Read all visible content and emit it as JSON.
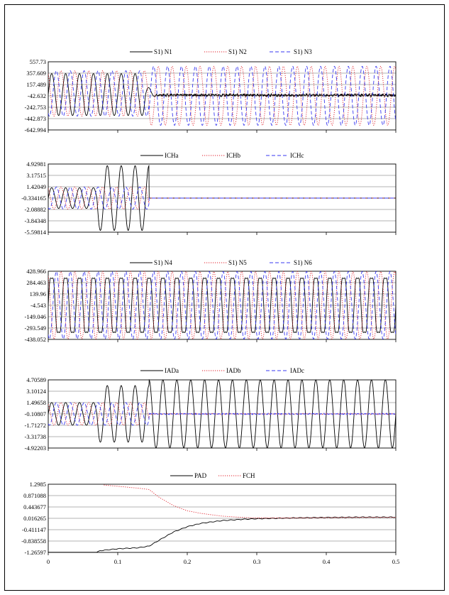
{
  "chart_data": [
    {
      "type": "line",
      "id": "p1",
      "y_ticks": [
        "557.73",
        "357.609",
        "157.489",
        "-42.632",
        "-242.753",
        "-442.873",
        "-642.994"
      ],
      "ylim": [
        -642.994,
        557.73
      ],
      "xlim": [
        0,
        0.5
      ],
      "series": [
        {
          "name": "S1) N1",
          "color": "#000000",
          "dash": "solid",
          "segments": [
            {
              "t0": 0,
              "t1": 0.14,
              "amp": 370,
              "offset": -20
            },
            {
              "t0": 0.14,
              "t1": 0.155,
              "amp": 150,
              "offset": -20,
              "decay": true
            },
            {
              "t0": 0.155,
              "t1": 0.5,
              "amp": 18,
              "offset": -30,
              "noise": true
            }
          ]
        },
        {
          "name": "S1) N2",
          "color": "#e0202a",
          "dash": "dot",
          "segments": [
            {
              "t0": 0,
              "t1": 0.145,
              "amp": 400,
              "offset": 0,
              "phase": 2.094
            },
            {
              "t0": 0.145,
              "t1": 0.5,
              "amp": 520,
              "offset": -42,
              "phase": 2.094
            }
          ]
        },
        {
          "name": "S1) N3",
          "color": "#3a3af0",
          "dash": "dash",
          "segments": [
            {
              "t0": 0,
              "t1": 0.145,
              "amp": 400,
              "offset": 0,
              "phase": 4.189
            },
            {
              "t0": 0.145,
              "t1": 0.5,
              "amp": 520,
              "offset": -42,
              "phase": 4.189
            }
          ]
        }
      ]
    },
    {
      "type": "line",
      "id": "p2",
      "y_ticks": [
        "4.92981",
        "3.17515",
        "1.42049",
        "-0.334165",
        "-2.08882",
        "-3.84348",
        "-5.59814"
      ],
      "ylim": [
        -5.59814,
        4.92981
      ],
      "xlim": [
        0,
        0.5
      ],
      "series": [
        {
          "name": "ICHa",
          "color": "#000000",
          "dash": "solid",
          "segments": [
            {
              "t0": 0,
              "t1": 0.07,
              "amp": 1.6,
              "offset": -0.33
            },
            {
              "t0": 0.07,
              "t1": 0.145,
              "amp": 5.0,
              "offset": -0.33
            },
            {
              "t0": 0.145,
              "t1": 0.5,
              "amp": 0,
              "offset": -0.334
            }
          ]
        },
        {
          "name": "ICHb",
          "color": "#e0202a",
          "dash": "dot",
          "segments": [
            {
              "t0": 0,
              "t1": 0.145,
              "amp": 1.7,
              "offset": -0.33,
              "phase": 2.094
            },
            {
              "t0": 0.145,
              "t1": 0.5,
              "amp": 0,
              "offset": -0.334
            }
          ]
        },
        {
          "name": "ICHc",
          "color": "#3a3af0",
          "dash": "dash",
          "segments": [
            {
              "t0": 0,
              "t1": 0.145,
              "amp": 1.7,
              "offset": -0.33,
              "phase": 4.189
            },
            {
              "t0": 0.145,
              "t1": 0.5,
              "amp": 0,
              "offset": -0.334
            }
          ]
        }
      ]
    },
    {
      "type": "line",
      "id": "p3",
      "y_ticks": [
        "428.966",
        "284.463",
        "139.96",
        "-4.543",
        "-149.046",
        "-293.549",
        "-438.052"
      ],
      "ylim": [
        -438.052,
        428.966
      ],
      "xlim": [
        0,
        0.5
      ],
      "series": [
        {
          "name": "S1) N4",
          "color": "#000000",
          "dash": "solid",
          "segments": [
            {
              "t0": 0,
              "t1": 0.5,
              "amp": 400,
              "offset": -4,
              "harm": true
            }
          ]
        },
        {
          "name": "S1) N5",
          "color": "#e0202a",
          "dash": "dot",
          "segments": [
            {
              "t0": 0,
              "t1": 0.5,
              "amp": 430,
              "offset": -4,
              "phase": 2.094
            }
          ]
        },
        {
          "name": "S1) N6",
          "color": "#3a3af0",
          "dash": "dash",
          "segments": [
            {
              "t0": 0,
              "t1": 0.5,
              "amp": 430,
              "offset": -4,
              "phase": 4.189
            }
          ]
        }
      ]
    },
    {
      "type": "line",
      "id": "p4",
      "y_ticks": [
        "4.70589",
        "3.10124",
        "1.49658",
        "-0.10807",
        "-1.71272",
        "-3.31738",
        "-4.92203"
      ],
      "ylim": [
        -4.92203,
        4.70589
      ],
      "xlim": [
        0,
        0.5
      ],
      "series": [
        {
          "name": "IADa",
          "color": "#000000",
          "dash": "solid",
          "segments": [
            {
              "t0": 0,
              "t1": 0.07,
              "amp": 1.6,
              "offset": -0.1
            },
            {
              "t0": 0.07,
              "t1": 0.145,
              "amp": 4.0,
              "offset": -0.1
            },
            {
              "t0": 0.145,
              "t1": 0.5,
              "amp": 4.8,
              "offset": -0.1
            }
          ]
        },
        {
          "name": "IADb",
          "color": "#e0202a",
          "dash": "dot",
          "segments": [
            {
              "t0": 0,
              "t1": 0.145,
              "amp": 1.6,
              "offset": -0.1,
              "phase": 2.094
            },
            {
              "t0": 0.145,
              "t1": 0.5,
              "amp": 0.06,
              "offset": -0.108,
              "noise": true
            }
          ]
        },
        {
          "name": "IADc",
          "color": "#3a3af0",
          "dash": "dash",
          "segments": [
            {
              "t0": 0,
              "t1": 0.145,
              "amp": 1.6,
              "offset": -0.1,
              "phase": 4.189
            },
            {
              "t0": 0.145,
              "t1": 0.5,
              "amp": 0.06,
              "offset": -0.108,
              "noise": true
            }
          ]
        }
      ]
    },
    {
      "type": "line",
      "id": "p5",
      "y_ticks": [
        "1.2985",
        "0.871088",
        "0.443677",
        "0.016265",
        "-0.411147",
        "-0.838558",
        "-1.26597"
      ],
      "ylim": [
        -1.26597,
        1.2985
      ],
      "xlim": [
        0,
        0.5
      ],
      "x_ticks": [
        "0",
        "0.1",
        "0.2",
        "0.3",
        "0.4",
        "0.5"
      ],
      "series": [
        {
          "name": "PAD",
          "color": "#000000",
          "dash": "solid",
          "points": [
            [
              0,
              -1.26
            ],
            [
              0.07,
              -1.26
            ],
            [
              0.075,
              -1.2
            ],
            [
              0.1,
              -1.13
            ],
            [
              0.13,
              -1.09
            ],
            [
              0.145,
              -1.03
            ],
            [
              0.16,
              -0.8
            ],
            [
              0.18,
              -0.5
            ],
            [
              0.2,
              -0.3
            ],
            [
              0.22,
              -0.17
            ],
            [
              0.25,
              -0.07
            ],
            [
              0.28,
              -0.02
            ],
            [
              0.3,
              0.0
            ],
            [
              0.35,
              0.03
            ],
            [
              0.4,
              0.05
            ],
            [
              0.45,
              0.06
            ],
            [
              0.5,
              0.06
            ]
          ]
        },
        {
          "name": "FCH",
          "color": "#e0202a",
          "dash": "dot",
          "points": [
            [
              0.08,
              1.27
            ],
            [
              0.1,
              1.22
            ],
            [
              0.13,
              1.15
            ],
            [
              0.145,
              1.1
            ],
            [
              0.16,
              0.8
            ],
            [
              0.18,
              0.5
            ],
            [
              0.2,
              0.3
            ],
            [
              0.22,
              0.2
            ],
            [
              0.25,
              0.1
            ],
            [
              0.28,
              0.05
            ],
            [
              0.3,
              0.03
            ],
            [
              0.35,
              0.03
            ],
            [
              0.4,
              0.04
            ],
            [
              0.45,
              0.05
            ],
            [
              0.5,
              0.05
            ]
          ]
        }
      ]
    }
  ]
}
